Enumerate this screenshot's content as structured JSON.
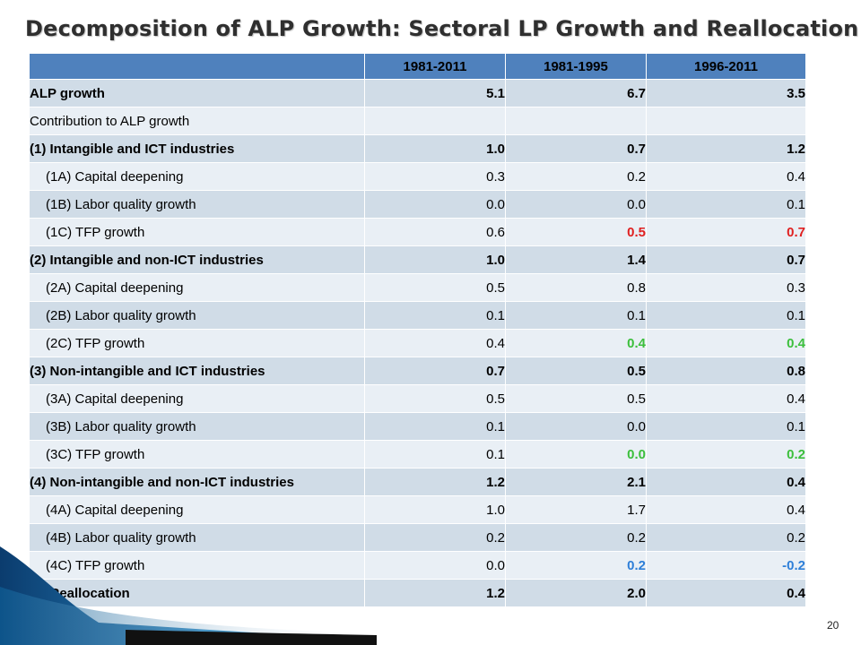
{
  "slide": {
    "title": "Decomposition of ALP Growth: Sectoral LP Growth and Reallocation",
    "page_number": "20"
  },
  "colors": {
    "header": "#4f81bd",
    "band_dark": "#d0dce7",
    "band_light": "#e9eff5",
    "red": "#e02020",
    "green": "#3cbf3c",
    "blue": "#2e7fd8"
  },
  "table": {
    "headers": [
      "",
      "1981-2011",
      "1981-1995",
      "1996-2011"
    ],
    "rows": [
      {
        "label": "ALP growth",
        "bold": true,
        "indent": false,
        "values": [
          "5.1",
          "6.7",
          "3.5"
        ],
        "colors": [
          "",
          "",
          ""
        ]
      },
      {
        "label": "Contribution to ALP growth",
        "bold": false,
        "indent": false,
        "values": [
          "",
          "",
          ""
        ],
        "colors": [
          "",
          "",
          ""
        ]
      },
      {
        "label": "(1) Intangible and ICT industries",
        "bold": true,
        "indent": false,
        "values": [
          "1.0",
          "0.7",
          "1.2"
        ],
        "colors": [
          "",
          "",
          ""
        ]
      },
      {
        "label": "(1A) Capital deepening",
        "bold": false,
        "indent": true,
        "values": [
          "0.3",
          "0.2",
          "0.4"
        ],
        "colors": [
          "",
          "",
          ""
        ]
      },
      {
        "label": "(1B) Labor quality growth",
        "bold": false,
        "indent": true,
        "values": [
          "0.0",
          "0.0",
          "0.1"
        ],
        "colors": [
          "",
          "",
          ""
        ]
      },
      {
        "label": "(1C) TFP growth",
        "bold": false,
        "indent": true,
        "values": [
          "0.6",
          "0.5",
          "0.7"
        ],
        "colors": [
          "",
          "red",
          "red"
        ]
      },
      {
        "label": "(2) Intangible and non-ICT industries",
        "bold": true,
        "indent": false,
        "values": [
          "1.0",
          "1.4",
          "0.7"
        ],
        "colors": [
          "",
          "",
          ""
        ]
      },
      {
        "label": "(2A) Capital deepening",
        "bold": false,
        "indent": true,
        "values": [
          "0.5",
          "0.8",
          "0.3"
        ],
        "colors": [
          "",
          "",
          ""
        ]
      },
      {
        "label": "(2B) Labor quality growth",
        "bold": false,
        "indent": true,
        "values": [
          "0.1",
          "0.1",
          "0.1"
        ],
        "colors": [
          "",
          "",
          ""
        ]
      },
      {
        "label": "(2C) TFP growth",
        "bold": false,
        "indent": true,
        "values": [
          "0.4",
          "0.4",
          "0.4"
        ],
        "colors": [
          "",
          "green",
          "green"
        ]
      },
      {
        "label": "(3) Non-intangible and ICT industries",
        "bold": true,
        "indent": false,
        "values": [
          "0.7",
          "0.5",
          "0.8"
        ],
        "colors": [
          "",
          "",
          ""
        ]
      },
      {
        "label": "(3A) Capital deepening",
        "bold": false,
        "indent": true,
        "values": [
          "0.5",
          "0.5",
          "0.4"
        ],
        "colors": [
          "",
          "",
          ""
        ]
      },
      {
        "label": "(3B) Labor quality growth",
        "bold": false,
        "indent": true,
        "values": [
          "0.1",
          "0.0",
          "0.1"
        ],
        "colors": [
          "",
          "",
          ""
        ]
      },
      {
        "label": "(3C) TFP growth",
        "bold": false,
        "indent": true,
        "values": [
          "0.1",
          "0.0",
          "0.2"
        ],
        "colors": [
          "",
          "green",
          "green"
        ]
      },
      {
        "label": "(4) Non-intangible and non-ICT industries",
        "bold": true,
        "indent": false,
        "values": [
          "1.2",
          "2.1",
          "0.4"
        ],
        "colors": [
          "",
          "",
          ""
        ]
      },
      {
        "label": "(4A) Capital deepening",
        "bold": false,
        "indent": true,
        "values": [
          "1.0",
          "1.7",
          "0.4"
        ],
        "colors": [
          "",
          "",
          ""
        ]
      },
      {
        "label": "(4B) Labor quality growth",
        "bold": false,
        "indent": true,
        "values": [
          "0.2",
          "0.2",
          "0.2"
        ],
        "colors": [
          "",
          "",
          ""
        ]
      },
      {
        "label": "(4C) TFP growth",
        "bold": false,
        "indent": true,
        "values": [
          "0.0",
          "0.2",
          "-0.2"
        ],
        "colors": [
          "",
          "blue",
          "blue"
        ]
      },
      {
        "label": "(5) Reallocation",
        "bold": true,
        "indent": false,
        "values": [
          "1.2",
          "2.0",
          "0.4"
        ],
        "colors": [
          "",
          "",
          ""
        ]
      }
    ]
  }
}
